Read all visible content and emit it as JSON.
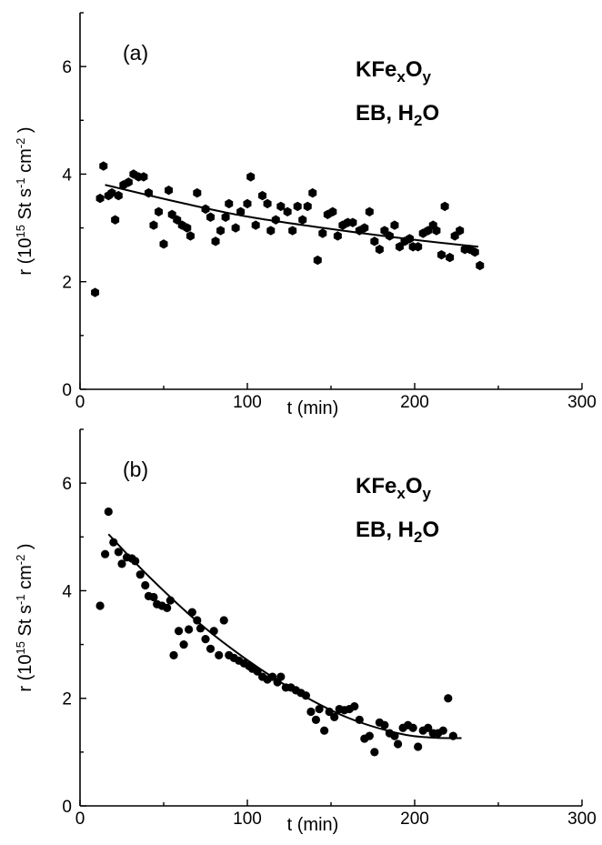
{
  "chart_data": [
    {
      "type": "scatter",
      "panel_label": "(a)",
      "annotation_line1": {
        "base": "KFe",
        "sub1": "x",
        "mid": "O",
        "sub2": "y"
      },
      "annotation_line2": {
        "base": "EB, H",
        "sub": "2",
        "tail": "O"
      },
      "xlabel": "t (min)",
      "ylabel": {
        "pre": "r  (10",
        "sup1": "15",
        "mid1": " St  s",
        "sup2": "-1",
        "mid2": " cm",
        "sup3": "-2",
        "post": " )"
      },
      "xlim": [
        0,
        300
      ],
      "ylim": [
        0,
        7
      ],
      "xticks": [
        0,
        100,
        200,
        300
      ],
      "yticks": [
        0,
        2,
        4,
        6
      ],
      "marker": "hexagon",
      "points": [
        [
          9,
          1.8
        ],
        [
          12,
          3.55
        ],
        [
          14,
          4.15
        ],
        [
          17,
          3.6
        ],
        [
          19,
          3.65
        ],
        [
          21,
          3.15
        ],
        [
          23,
          3.6
        ],
        [
          26,
          3.8
        ],
        [
          29,
          3.85
        ],
        [
          32,
          4.0
        ],
        [
          35,
          3.95
        ],
        [
          38,
          3.95
        ],
        [
          41,
          3.65
        ],
        [
          44,
          3.05
        ],
        [
          47,
          3.3
        ],
        [
          50,
          2.7
        ],
        [
          53,
          3.7
        ],
        [
          55,
          3.25
        ],
        [
          58,
          3.15
        ],
        [
          61,
          3.05
        ],
        [
          64,
          3.0
        ],
        [
          66,
          2.85
        ],
        [
          70,
          3.65
        ],
        [
          75,
          3.35
        ],
        [
          78,
          3.2
        ],
        [
          81,
          2.75
        ],
        [
          84,
          2.95
        ],
        [
          87,
          3.2
        ],
        [
          89,
          3.45
        ],
        [
          93,
          3.0
        ],
        [
          96,
          3.3
        ],
        [
          100,
          3.45
        ],
        [
          102,
          3.95
        ],
        [
          105,
          3.05
        ],
        [
          109,
          3.6
        ],
        [
          112,
          3.45
        ],
        [
          114,
          2.95
        ],
        [
          117,
          3.15
        ],
        [
          120,
          3.4
        ],
        [
          124,
          3.3
        ],
        [
          127,
          2.95
        ],
        [
          130,
          3.4
        ],
        [
          133,
          3.15
        ],
        [
          136,
          3.4
        ],
        [
          139,
          3.65
        ],
        [
          142,
          2.4
        ],
        [
          145,
          2.9
        ],
        [
          148,
          3.25
        ],
        [
          151,
          3.3
        ],
        [
          154,
          2.85
        ],
        [
          157,
          3.05
        ],
        [
          160,
          3.1
        ],
        [
          163,
          3.1
        ],
        [
          167,
          2.95
        ],
        [
          170,
          3.0
        ],
        [
          173,
          3.3
        ],
        [
          176,
          2.75
        ],
        [
          179,
          2.6
        ],
        [
          182,
          2.95
        ],
        [
          185,
          2.85
        ],
        [
          188,
          3.05
        ],
        [
          191,
          2.65
        ],
        [
          194,
          2.75
        ],
        [
          197,
          2.8
        ],
        [
          199,
          2.65
        ],
        [
          202,
          2.65
        ],
        [
          205,
          2.9
        ],
        [
          208,
          2.95
        ],
        [
          211,
          3.05
        ],
        [
          213,
          2.95
        ],
        [
          216,
          2.5
        ],
        [
          218,
          3.4
        ],
        [
          221,
          2.45
        ],
        [
          224,
          2.85
        ],
        [
          227,
          2.95
        ],
        [
          230,
          2.6
        ],
        [
          233,
          2.6
        ],
        [
          236,
          2.55
        ],
        [
          239,
          2.3
        ]
      ],
      "fit": [
        [
          15,
          3.8
        ],
        [
          60,
          3.47
        ],
        [
          100,
          3.21
        ],
        [
          150,
          2.98
        ],
        [
          200,
          2.78
        ],
        [
          238,
          2.65
        ]
      ]
    },
    {
      "type": "scatter",
      "panel_label": "(b)",
      "annotation_line1": {
        "base": "KFe",
        "sub1": "x",
        "mid": "O",
        "sub2": "y"
      },
      "annotation_line2": {
        "base": "EB, H",
        "sub": "2",
        "tail": "O"
      },
      "xlabel": "t (min)",
      "ylabel": {
        "pre": "r  (10",
        "sup1": "15",
        "mid1": " St  s",
        "sup2": "-1",
        "mid2": " cm",
        "sup3": "-2",
        "post": " )"
      },
      "xlim": [
        0,
        300
      ],
      "ylim": [
        0,
        7
      ],
      "xticks": [
        0,
        100,
        200,
        300
      ],
      "yticks": [
        0,
        2,
        4,
        6
      ],
      "marker": "circle",
      "points": [
        [
          12,
          3.72
        ],
        [
          15,
          4.68
        ],
        [
          17,
          5.47
        ],
        [
          20,
          4.9
        ],
        [
          23,
          4.72
        ],
        [
          25,
          4.5
        ],
        [
          28,
          4.62
        ],
        [
          31,
          4.6
        ],
        [
          33,
          4.55
        ],
        [
          36,
          4.3
        ],
        [
          39,
          4.1
        ],
        [
          41,
          3.9
        ],
        [
          44,
          3.88
        ],
        [
          46,
          3.75
        ],
        [
          49,
          3.72
        ],
        [
          52,
          3.68
        ],
        [
          54,
          3.82
        ],
        [
          56,
          2.8
        ],
        [
          59,
          3.25
        ],
        [
          62,
          3.0
        ],
        [
          65,
          3.28
        ],
        [
          67,
          3.6
        ],
        [
          70,
          3.45
        ],
        [
          72,
          3.3
        ],
        [
          75,
          3.1
        ],
        [
          78,
          2.92
        ],
        [
          80,
          3.25
        ],
        [
          83,
          2.8
        ],
        [
          86,
          3.45
        ],
        [
          89,
          2.8
        ],
        [
          92,
          2.75
        ],
        [
          95,
          2.7
        ],
        [
          98,
          2.65
        ],
        [
          101,
          2.6
        ],
        [
          103,
          2.55
        ],
        [
          106,
          2.5
        ],
        [
          109,
          2.4
        ],
        [
          112,
          2.35
        ],
        [
          115,
          2.4
        ],
        [
          118,
          2.3
        ],
        [
          120,
          2.4
        ],
        [
          123,
          2.2
        ],
        [
          126,
          2.2
        ],
        [
          129,
          2.15
        ],
        [
          132,
          2.1
        ],
        [
          135,
          2.05
        ],
        [
          138,
          1.75
        ],
        [
          141,
          1.6
        ],
        [
          143,
          1.8
        ],
        [
          146,
          1.4
        ],
        [
          149,
          1.75
        ],
        [
          152,
          1.65
        ],
        [
          155,
          1.8
        ],
        [
          158,
          1.78
        ],
        [
          161,
          1.8
        ],
        [
          164,
          1.85
        ],
        [
          167,
          1.6
        ],
        [
          170,
          1.25
        ],
        [
          173,
          1.3
        ],
        [
          176,
          1.0
        ],
        [
          179,
          1.55
        ],
        [
          182,
          1.5
        ],
        [
          185,
          1.35
        ],
        [
          188,
          1.3
        ],
        [
          190,
          1.15
        ],
        [
          193,
          1.45
        ],
        [
          196,
          1.5
        ],
        [
          199,
          1.45
        ],
        [
          202,
          1.1
        ],
        [
          205,
          1.4
        ],
        [
          208,
          1.45
        ],
        [
          211,
          1.35
        ],
        [
          214,
          1.35
        ],
        [
          217,
          1.4
        ],
        [
          220,
          2.0
        ],
        [
          223,
          1.3
        ]
      ],
      "fit": [
        [
          17,
          5.05
        ],
        [
          40,
          4.3
        ],
        [
          70,
          3.43
        ],
        [
          100,
          2.71
        ],
        [
          130,
          2.11
        ],
        [
          160,
          1.64
        ],
        [
          190,
          1.35
        ],
        [
          210,
          1.27
        ],
        [
          228,
          1.26
        ]
      ]
    }
  ]
}
